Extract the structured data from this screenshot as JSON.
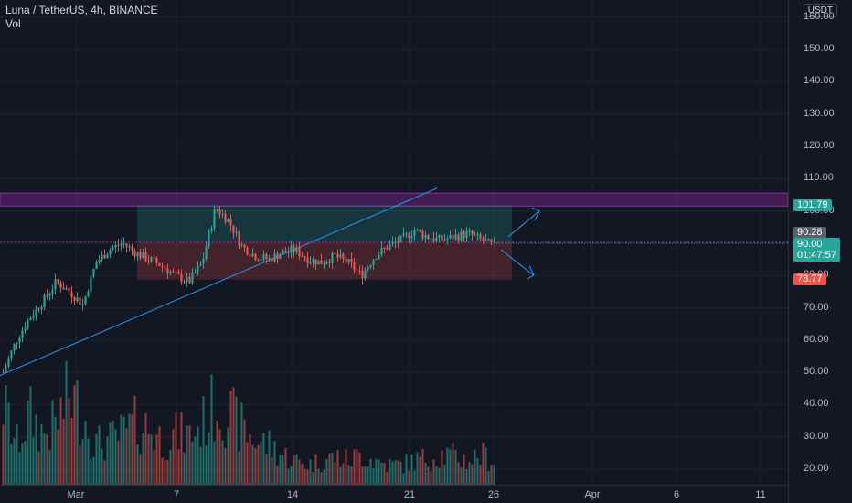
{
  "header": {
    "symbol": "Luna / TetherUS, 4h, BINANCE",
    "volume_label": "Vol",
    "currency": "USDT"
  },
  "chart_data": {
    "type": "candlestick",
    "symbol": "Luna / TetherUS",
    "interval": "4h",
    "exchange": "BINANCE",
    "y_axis": {
      "ticks": [
        "160.00",
        "150.00",
        "140.00",
        "130.00",
        "120.00",
        "110.00",
        "100.00",
        "90.00",
        "80.00",
        "70.00",
        "60.00",
        "50.00",
        "40.00",
        "30.00",
        "20.00"
      ],
      "ylim": [
        17,
        167
      ]
    },
    "x_axis": {
      "tick_labels": [
        "Mar",
        "7",
        "14",
        "21",
        "26",
        "Apr",
        "6",
        "11"
      ]
    },
    "price_path": [
      50,
      60,
      67,
      72,
      78,
      75,
      71,
      84,
      88,
      90,
      87,
      85,
      83,
      80,
      78,
      84,
      101,
      97,
      89,
      86,
      85,
      87,
      88,
      85,
      84,
      86,
      84,
      80,
      86,
      89,
      91,
      94,
      92,
      91,
      92,
      93,
      91,
      89
    ],
    "current_price": "90.00",
    "countdown": "01:47:57",
    "marked_levels": [
      {
        "label": "101.79",
        "color": "#26a69a"
      },
      {
        "label": "90.28",
        "color": "#5d606b"
      },
      {
        "label": "78.77",
        "color": "#ef5350"
      }
    ],
    "resistance_zone": {
      "from": 101.5,
      "to": 105.5,
      "color": "#9c27b0"
    },
    "volume_path": [
      40,
      20,
      35,
      25,
      30,
      45,
      35,
      20,
      22,
      25,
      30,
      28,
      22,
      25,
      24,
      30,
      40,
      35,
      28,
      22,
      20,
      15,
      12,
      10,
      12,
      14,
      12,
      15,
      12,
      10,
      10,
      12,
      13,
      15,
      14,
      12,
      15,
      12
    ],
    "colors": {
      "up": "#26a69a",
      "down": "#ef5350",
      "trendline": "#2196f3",
      "background": "#131722"
    }
  }
}
